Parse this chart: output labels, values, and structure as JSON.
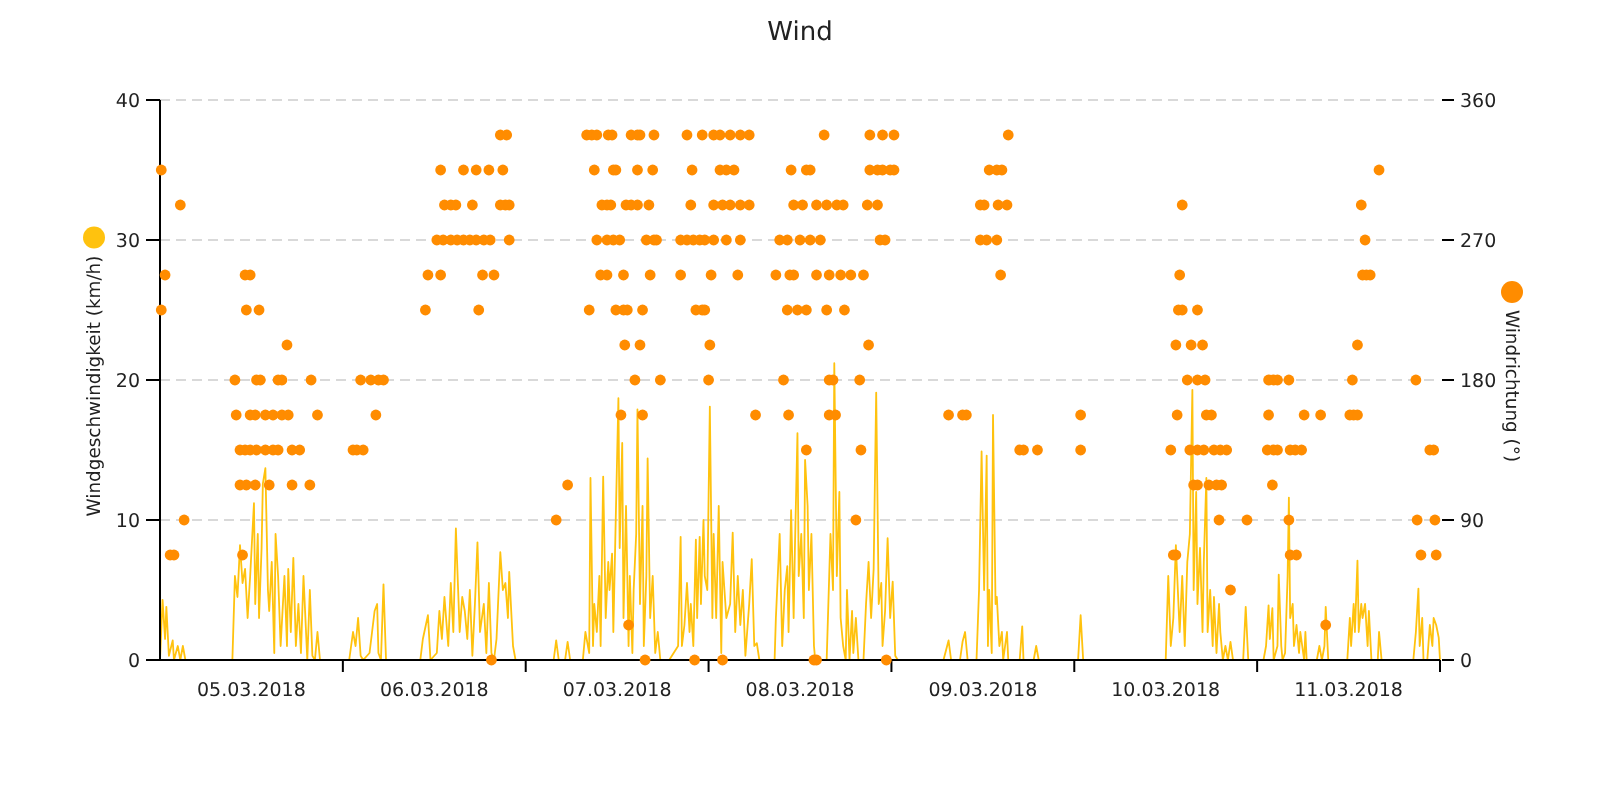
{
  "chart_data": {
    "type": "line",
    "title": "Wind",
    "ylabel": "Windgeschwindigkeit (km/h)",
    "y2label": "Windrichtung (°)",
    "xlim": [
      "2018-03-05T00:00",
      "2018-03-12T00:00"
    ],
    "xticks": [
      {
        "value": "2018-03-05T12:00",
        "label": "05.03.2018"
      },
      {
        "value": "2018-03-06T00:00",
        "label": null
      },
      {
        "value": "2018-03-06T12:00",
        "label": "06.03.2018"
      },
      {
        "value": "2018-03-07T00:00",
        "label": null
      },
      {
        "value": "2018-03-07T12:00",
        "label": "07.03.2018"
      },
      {
        "value": "2018-03-08T00:00",
        "label": null
      },
      {
        "value": "2018-03-08T12:00",
        "label": "08.03.2018"
      },
      {
        "value": "2018-03-09T00:00",
        "label": null
      },
      {
        "value": "2018-03-09T12:00",
        "label": "09.03.2018"
      },
      {
        "value": "2018-03-10T00:00",
        "label": null
      },
      {
        "value": "2018-03-10T12:00",
        "label": "10.03.2018"
      },
      {
        "value": "2018-03-11T00:00",
        "label": null
      },
      {
        "value": "2018-03-11T12:00",
        "label": "11.03.2018"
      },
      {
        "value": "2018-03-12T00:00",
        "label": null
      }
    ],
    "ylim": [
      0,
      40
    ],
    "yticks": [
      0,
      10,
      20,
      30,
      40
    ],
    "y2lim": [
      0,
      360
    ],
    "y2ticks": [
      0,
      90,
      180,
      270,
      360
    ],
    "grid": "y",
    "series": [
      {
        "color": "#ffc20e",
        "x": [
          "2018-03-05T00:00",
          "2018-03-05T00:20",
          "2018-03-05T00:40",
          "2018-03-05T00:50",
          "2018-03-05T01:10",
          "2018-03-05T01:40",
          "2018-03-05T01:50",
          "2018-03-05T02:20",
          "2018-03-05T02:40",
          "2018-03-05T03:00",
          "2018-03-05T03:20",
          "2018-03-05T09:30",
          "2018-03-05T09:50",
          "2018-03-05T10:10",
          "2018-03-05T10:30",
          "2018-03-05T10:50",
          "2018-03-05T11:10",
          "2018-03-05T11:30",
          "2018-03-05T11:50",
          "2018-03-05T12:20",
          "2018-03-05T12:30",
          "2018-03-05T12:50",
          "2018-03-05T13:00",
          "2018-03-05T13:20",
          "2018-03-05T13:30",
          "2018-03-05T13:50",
          "2018-03-05T14:10",
          "2018-03-05T14:20",
          "2018-03-05T14:40",
          "2018-03-05T15:00",
          "2018-03-05T15:10",
          "2018-03-05T15:30",
          "2018-03-05T15:50",
          "2018-03-05T16:20",
          "2018-03-05T16:40",
          "2018-03-05T16:50",
          "2018-03-05T17:10",
          "2018-03-05T17:30",
          "2018-03-05T17:50",
          "2018-03-05T18:10",
          "2018-03-05T18:30",
          "2018-03-05T18:50",
          "2018-03-05T19:20",
          "2018-03-05T19:40",
          "2018-03-05T20:00",
          "2018-03-05T20:20",
          "2018-03-05T20:40",
          "2018-03-05T21:00",
          "2018-03-06T00:50",
          "2018-03-06T01:20",
          "2018-03-06T01:40",
          "2018-03-06T02:00",
          "2018-03-06T02:20",
          "2018-03-06T02:40",
          "2018-03-06T03:30",
          "2018-03-06T03:50",
          "2018-03-06T04:10",
          "2018-03-06T04:30",
          "2018-03-06T04:40",
          "2018-03-06T05:00",
          "2018-03-06T05:20",
          "2018-03-06T05:40",
          "2018-03-06T10:10",
          "2018-03-06T10:30",
          "2018-03-06T11:10",
          "2018-03-06T11:30",
          "2018-03-06T12:20",
          "2018-03-06T12:40",
          "2018-03-06T13:00",
          "2018-03-06T13:20",
          "2018-03-06T13:50",
          "2018-03-06T14:10",
          "2018-03-06T14:30",
          "2018-03-06T14:50",
          "2018-03-06T15:20",
          "2018-03-06T15:40",
          "2018-03-06T16:00",
          "2018-03-06T16:20",
          "2018-03-06T16:40",
          "2018-03-06T17:00",
          "2018-03-06T17:20",
          "2018-03-06T17:40",
          "2018-03-06T18:00",
          "2018-03-06T18:30",
          "2018-03-06T18:50",
          "2018-03-06T19:10",
          "2018-03-06T19:30",
          "2018-03-06T19:50",
          "2018-03-06T20:10",
          "2018-03-06T20:40",
          "2018-03-06T21:00",
          "2018-03-06T21:20",
          "2018-03-06T21:40",
          "2018-03-06T21:50",
          "2018-03-06T22:20",
          "2018-03-06T22:40",
          "2018-03-07T03:40",
          "2018-03-07T04:00",
          "2018-03-07T04:20",
          "2018-03-07T05:10",
          "2018-03-07T05:30",
          "2018-03-07T05:50",
          "2018-03-07T07:30",
          "2018-03-07T07:50",
          "2018-03-07T08:20",
          "2018-03-07T08:30",
          "2018-03-07T08:50",
          "2018-03-07T09:00",
          "2018-03-07T09:20",
          "2018-03-07T09:40",
          "2018-03-07T09:50",
          "2018-03-07T10:10",
          "2018-03-07T10:30",
          "2018-03-07T10:50",
          "2018-03-07T11:00",
          "2018-03-07T11:20",
          "2018-03-07T11:30",
          "2018-03-07T11:50",
          "2018-03-07T12:10",
          "2018-03-07T12:20",
          "2018-03-07T12:40",
          "2018-03-07T12:50",
          "2018-03-07T13:10",
          "2018-03-07T13:30",
          "2018-03-07T13:40",
          "2018-03-07T14:00",
          "2018-03-07T14:10",
          "2018-03-07T14:30",
          "2018-03-07T14:40",
          "2018-03-07T15:00",
          "2018-03-07T15:20",
          "2018-03-07T15:30",
          "2018-03-07T15:50",
          "2018-03-07T16:00",
          "2018-03-07T16:20",
          "2018-03-07T16:40",
          "2018-03-07T17:00",
          "2018-03-07T17:20",
          "2018-03-07T17:40",
          "2018-03-07T18:50",
          "2018-03-07T20:00",
          "2018-03-07T20:20",
          "2018-03-07T20:30",
          "2018-03-07T20:50",
          "2018-03-07T21:10",
          "2018-03-07T21:30",
          "2018-03-07T21:40",
          "2018-03-07T22:00",
          "2018-03-07T22:20",
          "2018-03-07T22:30",
          "2018-03-07T22:50",
          "2018-03-07T23:00",
          "2018-03-07T23:20",
          "2018-03-07T23:30",
          "2018-03-07T23:50",
          "2018-03-08T00:10",
          "2018-03-08T00:30",
          "2018-03-08T00:40",
          "2018-03-08T01:00",
          "2018-03-08T01:20",
          "2018-03-08T01:40",
          "2018-03-08T01:50",
          "2018-03-08T02:20",
          "2018-03-08T02:50",
          "2018-03-08T03:10",
          "2018-03-08T03:30",
          "2018-03-08T03:50",
          "2018-03-08T04:10",
          "2018-03-08T04:30",
          "2018-03-08T04:50",
          "2018-03-08T05:20",
          "2018-03-08T05:40",
          "2018-03-08T06:00",
          "2018-03-08T06:20",
          "2018-03-08T06:40",
          "2018-03-08T08:40",
          "2018-03-08T08:50",
          "2018-03-08T09:20",
          "2018-03-08T09:40",
          "2018-03-08T10:00",
          "2018-03-08T10:20",
          "2018-03-08T10:30",
          "2018-03-08T10:50",
          "2018-03-08T11:10",
          "2018-03-08T11:20",
          "2018-03-08T11:40",
          "2018-03-08T11:50",
          "2018-03-08T12:10",
          "2018-03-08T12:30",
          "2018-03-08T12:40",
          "2018-03-08T13:00",
          "2018-03-08T13:10",
          "2018-03-08T13:30",
          "2018-03-08T13:50",
          "2018-03-08T14:00",
          "2018-03-08T15:30",
          "2018-03-08T15:50",
          "2018-03-08T16:00",
          "2018-03-08T16:20",
          "2018-03-08T16:30",
          "2018-03-08T16:50",
          "2018-03-08T17:10",
          "2018-03-08T17:20",
          "2018-03-08T17:40",
          "2018-03-08T18:00",
          "2018-03-08T18:10",
          "2018-03-08T18:30",
          "2018-03-08T18:50",
          "2018-03-08T19:00",
          "2018-03-08T19:20",
          "2018-03-08T19:40",
          "2018-03-08T20:20",
          "2018-03-08T20:40",
          "2018-03-08T21:00",
          "2018-03-08T21:20",
          "2018-03-08T21:40",
          "2018-03-08T22:00",
          "2018-03-08T22:20",
          "2018-03-08T22:40",
          "2018-03-08T22:50",
          "2018-03-08T23:10",
          "2018-03-08T23:30",
          "2018-03-08T23:50",
          "2018-03-09T00:10",
          "2018-03-09T00:30",
          "2018-03-09T00:50",
          "2018-03-09T06:50",
          "2018-03-09T07:30",
          "2018-03-09T07:50",
          "2018-03-09T09:00",
          "2018-03-09T09:20",
          "2018-03-09T09:40",
          "2018-03-09T10:00",
          "2018-03-09T11:10",
          "2018-03-09T11:30",
          "2018-03-09T11:50",
          "2018-03-09T12:10",
          "2018-03-09T12:30",
          "2018-03-09T12:40",
          "2018-03-09T12:50",
          "2018-03-09T13:10",
          "2018-03-09T13:20",
          "2018-03-09T13:40",
          "2018-03-09T13:50",
          "2018-03-09T14:10",
          "2018-03-09T14:30",
          "2018-03-09T14:40",
          "2018-03-09T15:10",
          "2018-03-09T15:20",
          "2018-03-09T16:50",
          "2018-03-09T17:10",
          "2018-03-09T17:20",
          "2018-03-09T18:40",
          "2018-03-09T19:00",
          "2018-03-09T19:20",
          "2018-03-10T00:30",
          "2018-03-10T00:50",
          "2018-03-10T01:10",
          "2018-03-10T12:00",
          "2018-03-10T12:20",
          "2018-03-10T12:40",
          "2018-03-10T13:00",
          "2018-03-10T13:20",
          "2018-03-10T13:50",
          "2018-03-10T14:10",
          "2018-03-10T14:30",
          "2018-03-10T14:50",
          "2018-03-10T15:10",
          "2018-03-10T15:30",
          "2018-03-10T15:40",
          "2018-03-10T16:00",
          "2018-03-10T16:10",
          "2018-03-10T16:30",
          "2018-03-10T16:50",
          "2018-03-10T17:00",
          "2018-03-10T17:20",
          "2018-03-10T17:30",
          "2018-03-10T17:50",
          "2018-03-10T18:10",
          "2018-03-10T18:20",
          "2018-03-10T18:40",
          "2018-03-10T19:00",
          "2018-03-10T19:10",
          "2018-03-10T19:30",
          "2018-03-10T19:50",
          "2018-03-10T20:10",
          "2018-03-10T20:30",
          "2018-03-10T20:50",
          "2018-03-10T22:10",
          "2018-03-10T22:30",
          "2018-03-10T22:50",
          "2018-03-11T00:50",
          "2018-03-11T01:10",
          "2018-03-11T01:30",
          "2018-03-11T01:40",
          "2018-03-11T02:00",
          "2018-03-11T02:10",
          "2018-03-11T02:40",
          "2018-03-11T02:50",
          "2018-03-11T03:10",
          "2018-03-11T03:20",
          "2018-03-11T03:40",
          "2018-03-11T04:00",
          "2018-03-11T04:10",
          "2018-03-11T04:20",
          "2018-03-11T04:40",
          "2018-03-11T04:50",
          "2018-03-11T05:10",
          "2018-03-11T05:30",
          "2018-03-11T05:40",
          "2018-03-11T06:10",
          "2018-03-11T06:20",
          "2018-03-11T06:30",
          "2018-03-11T07:50",
          "2018-03-11T08:10",
          "2018-03-11T08:30",
          "2018-03-11T08:50",
          "2018-03-11T09:00",
          "2018-03-11T09:20",
          "2018-03-11T11:50",
          "2018-03-11T12:10",
          "2018-03-11T12:20",
          "2018-03-11T12:40",
          "2018-03-11T12:50",
          "2018-03-11T13:10",
          "2018-03-11T13:20",
          "2018-03-11T13:40",
          "2018-03-11T13:50",
          "2018-03-11T14:10",
          "2018-03-11T14:30",
          "2018-03-11T14:40",
          "2018-03-11T15:00",
          "2018-03-11T15:50",
          "2018-03-11T16:00",
          "2018-03-11T16:20",
          "2018-03-11T20:30",
          "2018-03-11T20:50",
          "2018-03-11T21:10",
          "2018-03-11T21:20",
          "2018-03-11T21:40",
          "2018-03-11T21:50",
          "2018-03-11T22:20",
          "2018-03-11T22:40",
          "2018-03-11T23:00",
          "2018-03-11T23:10",
          "2018-03-11T23:30",
          "2018-03-11T23:50",
          "2018-03-12T00:00"
        ],
        "values": [
          0,
          4.3,
          1.5,
          3.8,
          0.3,
          1.4,
          0,
          1,
          0,
          1,
          0,
          0,
          6,
          4.5,
          8.2,
          5.5,
          6.5,
          3,
          6,
          11.2,
          4,
          9,
          3,
          8,
          12.6,
          13.7,
          5,
          3.5,
          7,
          0.5,
          9,
          6,
          1,
          6,
          1,
          6.5,
          2,
          7.3,
          1,
          4,
          0.5,
          6,
          0,
          5,
          0.3,
          0,
          2,
          0,
          0,
          2,
          1,
          3,
          0.3,
          0,
          0.5,
          2,
          3.5,
          4,
          0.5,
          0,
          5.4,
          0,
          0,
          1.5,
          3.2,
          0,
          0.5,
          3.5,
          1.5,
          4.5,
          1,
          5.5,
          2,
          9.4,
          2,
          4.5,
          3.5,
          1.5,
          5,
          0.3,
          4,
          8.4,
          2,
          4,
          0.5,
          5.5,
          0.5,
          0,
          1.5,
          7.7,
          5,
          5.5,
          3,
          6.3,
          1,
          0,
          0,
          1.4,
          0,
          0,
          1.3,
          0,
          0,
          2,
          0.5,
          13,
          1,
          4,
          2,
          6,
          1,
          13.1,
          3,
          7,
          5,
          7.6,
          2,
          10.5,
          18.7,
          8,
          15.5,
          3,
          11,
          1,
          6,
          0.5,
          5,
          9,
          17.9,
          4,
          11,
          1,
          6,
          14.4,
          3,
          6,
          0.5,
          2,
          0,
          0,
          1,
          8.8,
          1,
          2.5,
          5.5,
          2,
          4,
          1,
          8.6,
          3,
          8.8,
          4,
          10,
          6,
          5,
          18.1,
          3,
          9,
          3,
          11,
          0.5,
          7,
          3,
          4,
          9.1,
          2,
          6,
          2.5,
          5,
          0.3,
          4,
          7.2,
          1,
          1.2,
          0,
          0,
          3,
          9,
          1,
          5,
          6.7,
          2,
          10.7,
          3,
          8,
          16.2,
          6,
          9,
          3,
          14.3,
          11,
          5,
          9,
          1,
          0,
          0,
          6,
          9,
          5,
          21.2,
          6,
          12,
          3,
          1,
          0,
          5,
          0,
          3.5,
          0.5,
          3,
          0,
          0,
          4,
          7,
          3,
          6.5,
          19.1,
          4,
          5.5,
          1,
          3.5,
          8.7,
          3,
          5.6,
          0.3,
          0,
          0,
          1.4,
          0,
          0,
          1.3,
          2,
          0,
          0,
          5,
          14.9,
          5,
          14.6,
          1,
          5,
          0.5,
          17.5,
          4,
          4.5,
          1,
          2,
          0,
          2,
          0,
          0,
          2.4,
          0,
          0,
          1,
          0,
          0,
          3.2,
          0,
          0,
          6,
          1,
          3,
          8.2,
          2,
          6,
          1,
          7,
          9,
          19.3,
          5,
          12,
          4,
          8,
          2,
          7,
          13,
          2,
          5,
          1,
          4.5,
          0.5,
          4,
          2,
          0,
          1,
          0,
          1.3,
          0,
          0,
          3.8,
          0,
          0,
          1,
          3.9,
          1.5,
          3.7,
          0,
          1,
          6.1,
          1,
          0,
          0.5,
          6,
          11.6,
          3,
          4,
          1,
          2.5,
          0.5,
          2,
          0,
          2,
          0,
          0,
          1,
          0,
          1,
          3.8,
          0,
          0,
          3,
          1,
          4,
          2,
          7.1,
          2,
          4,
          3,
          4,
          1,
          3.5,
          0,
          0,
          2,
          0,
          0,
          2,
          5.1,
          1,
          3,
          0,
          0,
          2.5,
          1,
          3,
          2.5,
          1.6,
          0
        ]
      },
      {
        "type": "scatter",
        "axis": "y2",
        "color": "#ff8c00",
        "marker": "circle",
        "x": [
          "2018-03-05T00:10",
          "2018-03-05T00:10",
          "2018-03-05T00:40",
          "2018-03-05T01:20",
          "2018-03-05T01:50",
          "2018-03-05T02:40",
          "2018-03-05T03:10",
          "2018-03-05T09:50",
          "2018-03-05T10:00",
          "2018-03-05T10:30",
          "2018-03-05T10:30",
          "2018-03-05T10:50",
          "2018-03-05T11:10",
          "2018-03-05T11:10",
          "2018-03-05T11:20",
          "2018-03-05T11:20",
          "2018-03-05T11:50",
          "2018-03-05T11:50",
          "2018-03-05T11:50",
          "2018-03-05T12:30",
          "2018-03-05T12:30",
          "2018-03-05T12:40",
          "2018-03-05T12:40",
          "2018-03-05T13:00",
          "2018-03-05T13:10",
          "2018-03-05T13:50",
          "2018-03-05T13:50",
          "2018-03-05T14:20",
          "2018-03-05T14:50",
          "2018-03-05T14:50",
          "2018-03-05T15:30",
          "2018-03-05T15:30",
          "2018-03-05T16:00",
          "2018-03-05T16:00",
          "2018-03-05T16:40",
          "2018-03-05T16:50",
          "2018-03-05T17:20",
          "2018-03-05T17:20",
          "2018-03-05T18:20",
          "2018-03-05T19:40",
          "2018-03-05T19:50",
          "2018-03-05T20:40",
          "2018-03-06T01:20",
          "2018-03-06T01:50",
          "2018-03-06T02:40",
          "2018-03-06T02:20",
          "2018-03-06T03:40",
          "2018-03-06T04:40",
          "2018-03-06T05:20",
          "2018-03-06T04:20",
          "2018-03-06T10:50",
          "2018-03-06T11:10",
          "2018-03-06T12:50",
          "2018-03-06T12:50",
          "2018-03-06T12:20",
          "2018-03-06T13:10",
          "2018-03-06T14:10",
          "2018-03-06T15:00",
          "2018-03-06T15:50",
          "2018-03-06T16:40",
          "2018-03-06T17:30",
          "2018-03-06T18:30",
          "2018-03-06T19:20",
          "2018-03-06T13:20",
          "2018-03-06T14:10",
          "2018-03-06T14:50",
          "2018-03-06T17:00",
          "2018-03-06T15:50",
          "2018-03-06T17:30",
          "2018-03-06T19:10",
          "2018-03-06T17:50",
          "2018-03-06T18:20",
          "2018-03-06T19:50",
          "2018-03-06T19:30",
          "2018-03-06T20:40",
          "2018-03-06T21:30",
          "2018-03-06T20:40",
          "2018-03-06T21:20",
          "2018-03-06T21:50",
          "2018-03-06T21:00",
          "2018-03-06T21:50",
          "2018-03-07T04:00",
          "2018-03-07T05:30",
          "2018-03-07T08:00",
          "2018-03-07T08:40",
          "2018-03-07T09:20",
          "2018-03-07T10:50",
          "2018-03-07T11:20",
          "2018-03-07T13:50",
          "2018-03-07T14:40",
          "2018-03-07T15:00",
          "2018-03-07T16:50",
          "2018-03-07T21:10",
          "2018-03-07T23:10",
          "2018-03-07T09:00",
          "2018-03-07T11:30",
          "2018-03-07T11:50",
          "2018-03-07T14:40",
          "2018-03-07T16:40",
          "2018-03-07T21:50",
          "2018-03-07T10:00",
          "2018-03-07T10:40",
          "2018-03-07T11:10",
          "2018-03-07T13:10",
          "2018-03-07T13:50",
          "2018-03-07T14:40",
          "2018-03-07T16:10",
          "2018-03-07T21:40",
          "2018-03-07T09:20",
          "2018-03-07T10:40",
          "2018-03-07T11:30",
          "2018-03-07T12:20",
          "2018-03-07T15:50",
          "2018-03-07T16:50",
          "2018-03-07T17:10",
          "2018-03-07T20:20",
          "2018-03-07T21:10",
          "2018-03-07T22:00",
          "2018-03-07T22:50",
          "2018-03-07T23:30",
          "2018-03-07T09:50",
          "2018-03-07T10:40",
          "2018-03-07T12:50",
          "2018-03-07T16:20",
          "2018-03-07T20:20",
          "2018-03-08T00:20",
          "2018-03-07T08:20",
          "2018-03-07T11:50",
          "2018-03-07T12:50",
          "2018-03-07T13:20",
          "2018-03-07T15:20",
          "2018-03-07T22:20",
          "2018-03-07T23:10",
          "2018-03-07T23:30",
          "2018-03-07T13:00",
          "2018-03-07T15:00",
          "2018-03-08T00:10",
          "2018-03-07T14:20",
          "2018-03-07T17:40",
          "2018-03-08T00:00",
          "2018-03-07T12:30",
          "2018-03-07T15:20",
          "2018-03-07T13:30",
          "2018-03-07T15:40",
          "2018-03-07T22:10",
          "2018-03-08T01:50",
          "2018-03-08T00:40",
          "2018-03-08T01:30",
          "2018-03-08T02:50",
          "2018-03-08T04:10",
          "2018-03-08T05:20",
          "2018-03-08T15:10",
          "2018-03-08T21:10",
          "2018-03-08T22:50",
          "2018-03-09T00:20",
          "2018-03-08T01:30",
          "2018-03-08T02:20",
          "2018-03-08T03:20",
          "2018-03-08T10:50",
          "2018-03-08T12:50",
          "2018-03-08T13:20",
          "2018-03-08T21:10",
          "2018-03-08T22:10",
          "2018-03-08T22:50",
          "2018-03-08T23:50",
          "2018-03-08T00:40",
          "2018-03-08T01:50",
          "2018-03-08T02:50",
          "2018-03-08T04:10",
          "2018-03-08T05:20",
          "2018-03-08T11:10",
          "2018-03-08T12:20",
          "2018-03-08T14:10",
          "2018-03-08T15:30",
          "2018-03-08T16:50",
          "2018-03-08T17:40",
          "2018-03-08T20:50",
          "2018-03-08T22:10",
          "2018-03-08T00:40",
          "2018-03-08T02:20",
          "2018-03-08T04:10",
          "2018-03-08T09:20",
          "2018-03-08T10:20",
          "2018-03-08T12:00",
          "2018-03-08T13:20",
          "2018-03-08T14:40",
          "2018-03-08T22:30",
          "2018-03-08T23:10",
          "2018-03-08T03:50",
          "2018-03-08T08:50",
          "2018-03-08T10:40",
          "2018-03-08T11:10",
          "2018-03-08T14:10",
          "2018-03-08T15:50",
          "2018-03-08T17:20",
          "2018-03-08T18:40",
          "2018-03-08T20:20",
          "2018-03-08T10:20",
          "2018-03-08T11:40",
          "2018-03-08T12:50",
          "2018-03-08T15:30",
          "2018-03-08T17:50",
          "2018-03-08T21:00",
          "2018-03-08T09:50",
          "2018-03-08T15:50",
          "2018-03-08T16:20",
          "2018-03-08T19:50",
          "2018-03-08T06:10",
          "2018-03-08T10:30",
          "2018-03-08T15:50",
          "2018-03-08T16:40",
          "2018-03-08T12:50",
          "2018-03-08T20:00",
          "2018-03-08T19:20",
          "2018-03-08T13:50",
          "2018-03-08T14:10",
          "2018-03-08T23:20",
          "2018-03-09T15:20",
          "2018-03-09T00:20",
          "2018-03-09T12:50",
          "2018-03-09T13:50",
          "2018-03-09T14:30",
          "2018-03-09T11:40",
          "2018-03-09T12:10",
          "2018-03-09T14:00",
          "2018-03-09T15:10",
          "2018-03-09T11:40",
          "2018-03-09T12:30",
          "2018-03-09T13:50",
          "2018-03-09T14:20",
          "2018-03-09T07:30",
          "2018-03-09T09:20",
          "2018-03-09T09:50",
          "2018-03-10T00:50",
          "2018-03-09T16:50",
          "2018-03-09T17:20",
          "2018-03-09T19:10",
          "2018-03-10T00:50",
          "2018-03-10T14:10",
          "2018-03-10T13:50",
          "2018-03-10T13:40",
          "2018-03-10T14:10",
          "2018-03-10T16:10",
          "2018-03-10T13:20",
          "2018-03-10T15:20",
          "2018-03-10T16:50",
          "2018-03-10T14:50",
          "2018-03-10T16:10",
          "2018-03-10T17:10",
          "2018-03-10T13:30",
          "2018-03-10T17:20",
          "2018-03-10T18:00",
          "2018-03-10T12:40",
          "2018-03-10T15:10",
          "2018-03-10T16:10",
          "2018-03-10T17:00",
          "2018-03-10T18:20",
          "2018-03-10T19:10",
          "2018-03-10T20:00",
          "2018-03-10T15:40",
          "2018-03-10T16:10",
          "2018-03-10T17:40",
          "2018-03-10T18:40",
          "2018-03-10T19:20",
          "2018-03-10T19:00",
          "2018-03-10T22:40",
          "2018-03-10T13:00",
          "2018-03-10T13:20",
          "2018-03-10T20:30",
          "2018-03-11T01:30",
          "2018-03-11T02:10",
          "2018-03-11T02:40",
          "2018-03-11T04:10",
          "2018-03-11T01:30",
          "2018-03-11T06:10",
          "2018-03-11T08:20",
          "2018-03-11T01:20",
          "2018-03-11T02:10",
          "2018-03-11T02:40",
          "2018-03-11T04:20",
          "2018-03-11T05:00",
          "2018-03-11T05:50",
          "2018-03-11T02:00",
          "2018-03-11T04:10",
          "2018-03-11T04:20",
          "2018-03-11T05:10",
          "2018-03-11T09:00",
          "2018-03-11T16:00",
          "2018-03-11T13:40",
          "2018-03-11T14:10",
          "2018-03-11T13:50",
          "2018-03-11T14:20",
          "2018-03-11T14:50",
          "2018-03-11T13:10",
          "2018-03-11T12:30",
          "2018-03-11T12:10",
          "2018-03-11T12:40",
          "2018-03-11T13:10",
          "2018-03-11T20:50",
          "2018-03-11T22:40",
          "2018-03-11T23:10",
          "2018-03-11T21:00",
          "2018-03-11T23:20",
          "2018-03-11T21:30",
          "2018-03-11T23:30"
        ],
        "values": [
          315,
          225,
          247.5,
          67.5,
          67.5,
          292.5,
          90,
          180,
          157.5,
          135,
          112.5,
          67.5,
          247.5,
          135,
          225,
          112.5,
          247.5,
          157.5,
          135,
          112.5,
          157.5,
          180,
          135,
          225,
          180,
          157.5,
          135,
          112.5,
          157.5,
          135,
          180,
          135,
          180,
          157.5,
          202.5,
          157.5,
          135,
          112.5,
          135,
          112.5,
          180,
          157.5,
          135,
          135,
          135,
          180,
          180,
          180,
          180,
          157.5,
          225,
          247.5,
          247.5,
          315,
          270,
          270,
          270,
          270,
          270,
          270,
          270,
          270,
          270,
          292.5,
          292.5,
          292.5,
          292.5,
          315,
          315,
          315,
          225,
          247.5,
          247.5,
          0,
          337.5,
          337.5,
          292.5,
          292.5,
          292.5,
          315,
          270,
          90,
          112.5,
          337.5,
          337.5,
          337.5,
          337.5,
          337.5,
          337.5,
          337.5,
          337.5,
          337.5,
          337.5,
          337.5,
          315,
          315,
          315,
          315,
          315,
          315,
          292.5,
          292.5,
          292.5,
          292.5,
          292.5,
          292.5,
          292.5,
          292.5,
          270,
          270,
          270,
          270,
          270,
          270,
          270,
          270,
          270,
          270,
          270,
          270,
          247.5,
          247.5,
          247.5,
          247.5,
          247.5,
          247.5,
          225,
          225,
          225,
          225,
          225,
          225,
          225,
          225,
          202.5,
          202.5,
          202.5,
          180,
          180,
          180,
          157.5,
          157.5,
          22.5,
          0,
          0,
          0,
          337.5,
          337.5,
          337.5,
          337.5,
          337.5,
          337.5,
          337.5,
          337.5,
          337.5,
          315,
          315,
          315,
          315,
          315,
          315,
          315,
          315,
          315,
          315,
          292.5,
          292.5,
          292.5,
          292.5,
          292.5,
          292.5,
          292.5,
          292.5,
          292.5,
          292.5,
          292.5,
          292.5,
          292.5,
          270,
          270,
          270,
          270,
          270,
          270,
          270,
          270,
          270,
          270,
          247.5,
          247.5,
          247.5,
          247.5,
          247.5,
          247.5,
          247.5,
          247.5,
          247.5,
          225,
          225,
          225,
          225,
          225,
          202.5,
          180,
          180,
          180,
          180,
          157.5,
          157.5,
          157.5,
          157.5,
          135,
          135,
          90,
          0,
          0,
          0,
          337.5,
          315,
          315,
          315,
          315,
          292.5,
          292.5,
          292.5,
          292.5,
          270,
          270,
          270,
          247.5,
          157.5,
          157.5,
          157.5,
          157.5,
          135,
          135,
          135,
          135,
          292.5,
          247.5,
          225,
          225,
          225,
          202.5,
          202.5,
          202.5,
          180,
          180,
          180,
          157.5,
          157.5,
          157.5,
          135,
          135,
          135,
          135,
          135,
          135,
          135,
          112.5,
          112.5,
          112.5,
          112.5,
          112.5,
          90,
          90,
          67.5,
          67.5,
          45,
          180,
          180,
          180,
          180,
          157.5,
          157.5,
          157.5,
          135,
          135,
          135,
          135,
          135,
          135,
          112.5,
          90,
          67.5,
          67.5,
          22.5,
          315,
          292.5,
          270,
          247.5,
          247.5,
          247.5,
          202.5,
          180,
          157.5,
          157.5,
          157.5,
          180,
          135,
          135,
          90,
          90,
          67.5,
          67.5
        ]
      }
    ]
  }
}
